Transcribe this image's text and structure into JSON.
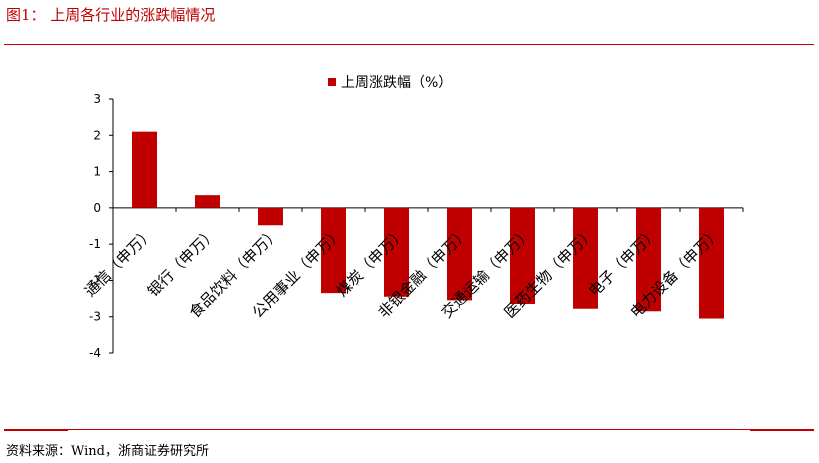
{
  "figure_title": "图1：  上周各行业的涨跌幅情况",
  "source_note": "资料来源：Wind，浙商证券研究所",
  "colors": {
    "bar": "#c00000",
    "accent": "#c00000"
  },
  "chart_data": {
    "type": "bar",
    "categories": [
      "通信（申万）",
      "银行（申万）",
      "食品饮料（申万）",
      "公用事业（申万）",
      "煤炭（申万）",
      "非银金融（申万）",
      "交通运输（申万）",
      "医药生物（申万）",
      "电子（申万）",
      "电力设备（申万）"
    ],
    "series": [
      {
        "name": "上周涨跌幅（%）",
        "values": [
          2.1,
          0.35,
          -0.48,
          -2.35,
          -2.45,
          -2.55,
          -2.65,
          -2.78,
          -2.85,
          -3.05
        ]
      }
    ],
    "ylim": [
      -4,
      3
    ],
    "yticks": [
      3,
      2,
      1,
      0,
      -1,
      -2,
      -3,
      -4
    ],
    "xlabel": "",
    "ylabel": "",
    "legend": "top-center",
    "grid": false
  }
}
